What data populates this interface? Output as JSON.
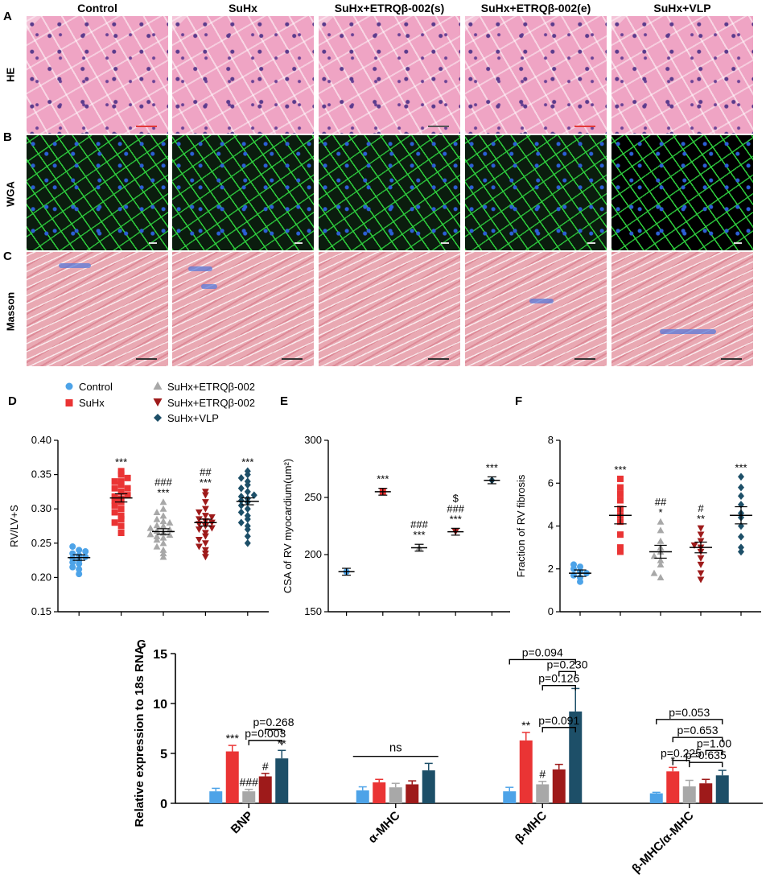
{
  "panel_letters": {
    "A": "A",
    "B": "B",
    "C": "C",
    "D": "D",
    "E": "E",
    "F": "F",
    "G": "G"
  },
  "column_headers": [
    "Control",
    "SuHx",
    "SuHx+ETRQβ-002(s)",
    "SuHx+ETRQβ-002(e)",
    "SuHx+VLP"
  ],
  "row_labels": {
    "he": "HE",
    "wga": "WGA",
    "masson": "Masson"
  },
  "legend": [
    {
      "label": "Control",
      "marker": "circle",
      "color": "#4da3e8"
    },
    {
      "label": "SuHx",
      "marker": "square",
      "color": "#ea3434"
    },
    {
      "label": "SuHx+ETRQβ-002",
      "marker": "triangle-up",
      "color": "#a8a8a8"
    },
    {
      "label": "SuHx+ETRQβ-002",
      "marker": "triangle-down",
      "color": "#9e1a1a"
    },
    {
      "label": "SuHx+VLP",
      "marker": "diamond",
      "color": "#1d4f68"
    }
  ],
  "colors": {
    "control": "#4da3e8",
    "suhx": "#ea3434",
    "etrq_s": "#a8a8a8",
    "etrq_e": "#9e1a1a",
    "vlp": "#1d4f68"
  },
  "chart_data": [
    {
      "id": "D",
      "type": "scatter",
      "ylabel": "RV/LV+S",
      "ylim": [
        0.15,
        0.4
      ],
      "yticks": [
        "0.15",
        "0.20",
        "0.25",
        "0.30",
        "0.35",
        "0.40"
      ],
      "groups": [
        {
          "mean": 0.229,
          "sem": 0.004,
          "annot": [],
          "points": [
            0.215,
            0.22,
            0.225,
            0.228,
            0.23,
            0.232,
            0.235,
            0.238,
            0.24,
            0.245,
            0.205,
            0.212,
            0.222
          ]
        },
        {
          "mean": 0.316,
          "sem": 0.006,
          "annot": [
            "***"
          ],
          "points": [
            0.355,
            0.35,
            0.345,
            0.34,
            0.335,
            0.33,
            0.325,
            0.32,
            0.318,
            0.315,
            0.312,
            0.31,
            0.305,
            0.3,
            0.295,
            0.29,
            0.285,
            0.28,
            0.275,
            0.265,
            0.34,
            0.33
          ]
        },
        {
          "mean": 0.267,
          "sem": 0.004,
          "annot": [
            "###",
            "***"
          ],
          "points": [
            0.31,
            0.3,
            0.295,
            0.29,
            0.285,
            0.28,
            0.275,
            0.272,
            0.27,
            0.268,
            0.265,
            0.262,
            0.26,
            0.258,
            0.255,
            0.25,
            0.245,
            0.24,
            0.235,
            0.23,
            0.282,
            0.276,
            0.263
          ]
        },
        {
          "mean": 0.28,
          "sem": 0.005,
          "annot": [
            "##",
            "***"
          ],
          "points": [
            0.325,
            0.32,
            0.31,
            0.3,
            0.295,
            0.29,
            0.285,
            0.282,
            0.28,
            0.278,
            0.275,
            0.272,
            0.27,
            0.265,
            0.26,
            0.255,
            0.25,
            0.245,
            0.24,
            0.235,
            0.23,
            0.288
          ]
        },
        {
          "mean": 0.311,
          "sem": 0.005,
          "annot": [
            "***"
          ],
          "points": [
            0.355,
            0.35,
            0.345,
            0.34,
            0.335,
            0.33,
            0.325,
            0.32,
            0.315,
            0.312,
            0.31,
            0.305,
            0.3,
            0.295,
            0.29,
            0.285,
            0.28,
            0.275,
            0.27,
            0.26,
            0.25,
            0.318
          ]
        }
      ]
    },
    {
      "id": "E",
      "type": "scatter",
      "ylabel": "CSA of RV myocardium(um²)",
      "ylim": [
        150,
        300
      ],
      "yticks": [
        "150",
        "200",
        "250",
        "300"
      ],
      "groups": [
        {
          "mean": 185,
          "sem": 3,
          "annot": []
        },
        {
          "mean": 255,
          "sem": 3,
          "annot": [
            "***"
          ]
        },
        {
          "mean": 206,
          "sem": 3,
          "annot": [
            "###",
            "***"
          ]
        },
        {
          "mean": 220,
          "sem": 3,
          "annot": [
            "$",
            "###",
            "***"
          ]
        },
        {
          "mean": 265,
          "sem": 3,
          "annot": [
            "***"
          ]
        }
      ]
    },
    {
      "id": "F",
      "type": "scatter",
      "ylabel": "Fraction of RV fibrosis",
      "ylim": [
        0,
        8
      ],
      "yticks": [
        "0",
        "2",
        "4",
        "6",
        "8"
      ],
      "groups": [
        {
          "mean": 1.8,
          "sem": 0.15,
          "annot": [],
          "points": [
            1.4,
            1.6,
            1.7,
            1.8,
            1.9,
            2.0,
            2.1,
            2.2
          ]
        },
        {
          "mean": 4.5,
          "sem": 0.4,
          "annot": [
            "***"
          ],
          "points": [
            6.2,
            5.8,
            5.5,
            5.2,
            4.8,
            4.5,
            4.2,
            3.6,
            3.0,
            2.8
          ]
        },
        {
          "mean": 2.8,
          "sem": 0.3,
          "annot": [
            "##",
            "*"
          ],
          "points": [
            4.2,
            3.8,
            3.3,
            3.0,
            2.8,
            2.6,
            2.4,
            2.2,
            1.8,
            1.6
          ]
        },
        {
          "mean": 3.0,
          "sem": 0.25,
          "annot": [
            "#",
            "**"
          ],
          "points": [
            3.9,
            3.6,
            3.3,
            3.1,
            3.0,
            2.8,
            2.5,
            2.2,
            1.8,
            1.5
          ]
        },
        {
          "mean": 4.5,
          "sem": 0.4,
          "annot": [
            "***"
          ],
          "points": [
            6.3,
            5.8,
            5.4,
            5.0,
            4.6,
            4.4,
            4.0,
            3.5,
            3.0,
            2.8
          ]
        }
      ]
    },
    {
      "id": "G",
      "type": "bar",
      "ylabel": "Relative expression to 18s RNA",
      "ylim": [
        0,
        15
      ],
      "yticks": [
        "0",
        "5",
        "10",
        "15"
      ],
      "categories": [
        "BNP",
        "α-MHC",
        "β-MHC",
        "β-MHC/α-MHC"
      ],
      "series_values": [
        [
          1.2,
          5.2,
          1.2,
          2.7,
          4.5
        ],
        [
          1.3,
          2.1,
          1.6,
          1.9,
          3.3
        ],
        [
          1.2,
          6.3,
          1.9,
          3.4,
          9.2
        ],
        [
          1.0,
          3.2,
          1.7,
          2.0,
          2.8
        ]
      ],
      "errors": [
        [
          0.3,
          0.6,
          0.2,
          0.3,
          0.8
        ],
        [
          0.35,
          0.3,
          0.4,
          0.35,
          0.7
        ],
        [
          0.4,
          0.8,
          0.3,
          0.5,
          2.3
        ],
        [
          0.1,
          0.4,
          0.6,
          0.4,
          0.5
        ]
      ],
      "bar_annot": [
        [
          "",
          "***",
          "###",
          "#",
          "**"
        ],
        [
          "",
          "",
          "",
          "",
          ""
        ],
        [
          "",
          "**",
          "#",
          "",
          ""
        ],
        [
          "",
          "*",
          "",
          "",
          ""
        ]
      ],
      "ns_label": "ns",
      "comparisons": [
        {
          "cat": 0,
          "from": 2,
          "to": 4,
          "label": "p=0.003",
          "y": 6.3
        },
        {
          "cat": 0,
          "from": 3,
          "to": 4,
          "label": "p=0.268",
          "y": 7.4
        },
        {
          "cat": 2,
          "from": 2,
          "to": 4,
          "label": "p=0.091",
          "y": 7.6
        },
        {
          "cat": 2,
          "from": 2,
          "to": 4,
          "label": "p=0.126",
          "y": 11.8
        },
        {
          "cat": 2,
          "from": 3,
          "to": 4,
          "label": "p=0.230",
          "y": 13.2
        },
        {
          "cat": 2,
          "from": 0,
          "to": 4,
          "label": "p=0.094",
          "y": 14.4
        },
        {
          "cat": 3,
          "from": 1,
          "to": 2,
          "label": "p=0.225",
          "y": 4.3
        },
        {
          "cat": 3,
          "from": 2,
          "to": 4,
          "label": "p=0.635",
          "y": 4.1
        },
        {
          "cat": 3,
          "from": 3,
          "to": 4,
          "label": "p=1.00",
          "y": 5.3
        },
        {
          "cat": 3,
          "from": 1,
          "to": 4,
          "label": "p=0.653",
          "y": 6.6
        },
        {
          "cat": 3,
          "from": 0,
          "to": 4,
          "label": "p=0.053",
          "y": 8.4
        }
      ]
    }
  ]
}
